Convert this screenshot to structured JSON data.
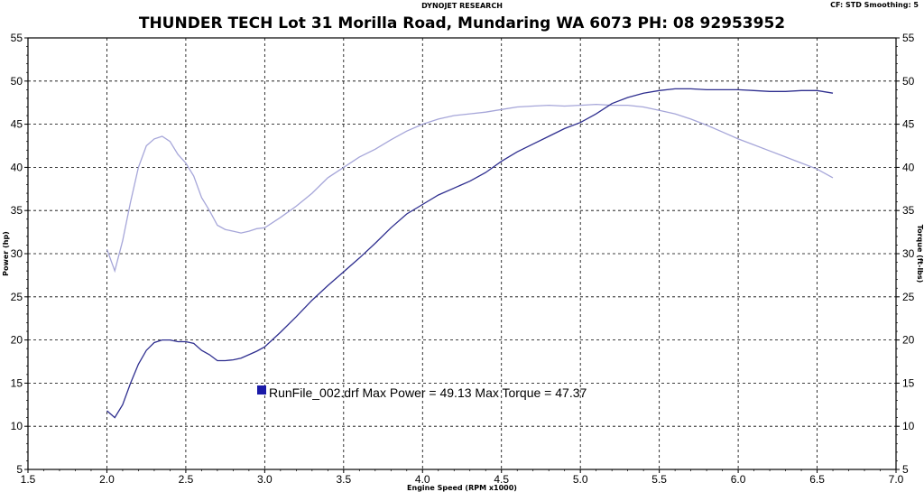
{
  "header": {
    "top_label": "DYNOJET RESEARCH",
    "settings": "CF: STD   Smoothing: 5",
    "title": "THUNDER TECH    Lot 31 Morilla Road, Mundaring WA 6073   PH: 08 92953952"
  },
  "annotation": {
    "text": "RunFile_002.drf Max Power = 49.13       Max Torque = 47.37"
  },
  "colors": {
    "power": "#2e2e8f",
    "torque": "#a6a6d9",
    "grid": "#000000",
    "marker": "#1a1aa8"
  },
  "chart_data": {
    "type": "line",
    "xlabel": "Engine Speed (RPM x1000)",
    "ylabel": "Power (hp)",
    "ylabel_right": "Torque (ft-lbs)",
    "xlim": [
      1.5,
      7.0
    ],
    "ylim": [
      5,
      55
    ],
    "x_ticks": [
      "1.5",
      "2.0",
      "2.5",
      "3.0",
      "3.5",
      "4.0",
      "4.5",
      "5.0",
      "5.5",
      "6.0",
      "6.5",
      "7.0"
    ],
    "y_ticks": [
      "5",
      "10",
      "15",
      "20",
      "25",
      "30",
      "35",
      "40",
      "45",
      "50",
      "55"
    ],
    "grid": true,
    "series": [
      {
        "axis": "left",
        "x": [
          2.0,
          2.05,
          2.1,
          2.15,
          2.2,
          2.25,
          2.3,
          2.35,
          2.4,
          2.45,
          2.5,
          2.55,
          2.6,
          2.65,
          2.7,
          2.75,
          2.8,
          2.85,
          2.9,
          2.95,
          3.0,
          3.1,
          3.2,
          3.3,
          3.4,
          3.5,
          3.6,
          3.7,
          3.8,
          3.9,
          4.0,
          4.1,
          4.2,
          4.3,
          4.4,
          4.5,
          4.6,
          4.7,
          4.8,
          4.9,
          5.0,
          5.1,
          5.2,
          5.3,
          5.4,
          5.5,
          5.6,
          5.7,
          5.8,
          5.9,
          6.0,
          6.1,
          6.2,
          6.3,
          6.4,
          6.5,
          6.6
        ],
        "values": [
          11.8,
          11.0,
          12.5,
          15.0,
          17.2,
          18.8,
          19.7,
          20.0,
          20.0,
          19.8,
          19.8,
          19.6,
          18.8,
          18.3,
          17.6,
          17.6,
          17.7,
          17.9,
          18.3,
          18.7,
          19.2,
          20.9,
          22.7,
          24.6,
          26.3,
          27.9,
          29.5,
          31.2,
          33.0,
          34.6,
          35.7,
          36.8,
          37.6,
          38.4,
          39.4,
          40.7,
          41.8,
          42.7,
          43.6,
          44.5,
          45.2,
          46.2,
          47.4,
          48.1,
          48.6,
          48.9,
          49.1,
          49.1,
          49.0,
          49.0,
          49.0,
          48.9,
          48.8,
          48.8,
          48.9,
          48.9,
          48.6
        ]
      },
      {
        "axis": "right",
        "x": [
          2.0,
          2.05,
          2.1,
          2.15,
          2.2,
          2.25,
          2.3,
          2.35,
          2.4,
          2.45,
          2.5,
          2.55,
          2.6,
          2.65,
          2.7,
          2.75,
          2.8,
          2.85,
          2.9,
          2.95,
          3.0,
          3.1,
          3.2,
          3.3,
          3.4,
          3.5,
          3.6,
          3.7,
          3.8,
          3.9,
          4.0,
          4.1,
          4.2,
          4.3,
          4.4,
          4.5,
          4.6,
          4.7,
          4.8,
          4.9,
          5.0,
          5.1,
          5.2,
          5.3,
          5.4,
          5.5,
          5.6,
          5.7,
          5.8,
          5.9,
          6.0,
          6.1,
          6.2,
          6.3,
          6.4,
          6.5,
          6.6
        ],
        "values": [
          30.5,
          28.0,
          31.5,
          36.0,
          40.0,
          42.5,
          43.3,
          43.6,
          43.0,
          41.5,
          40.5,
          39.0,
          36.5,
          35.0,
          33.3,
          32.8,
          32.6,
          32.4,
          32.6,
          32.9,
          33.0,
          34.2,
          35.5,
          37.0,
          38.8,
          40.0,
          41.2,
          42.1,
          43.2,
          44.2,
          45.0,
          45.6,
          46.0,
          46.2,
          46.4,
          46.7,
          47.0,
          47.1,
          47.2,
          47.1,
          47.2,
          47.3,
          47.2,
          47.2,
          47.0,
          46.6,
          46.2,
          45.6,
          44.9,
          44.1,
          43.3,
          42.6,
          41.9,
          41.2,
          40.5,
          39.8,
          38.8
        ]
      }
    ]
  }
}
